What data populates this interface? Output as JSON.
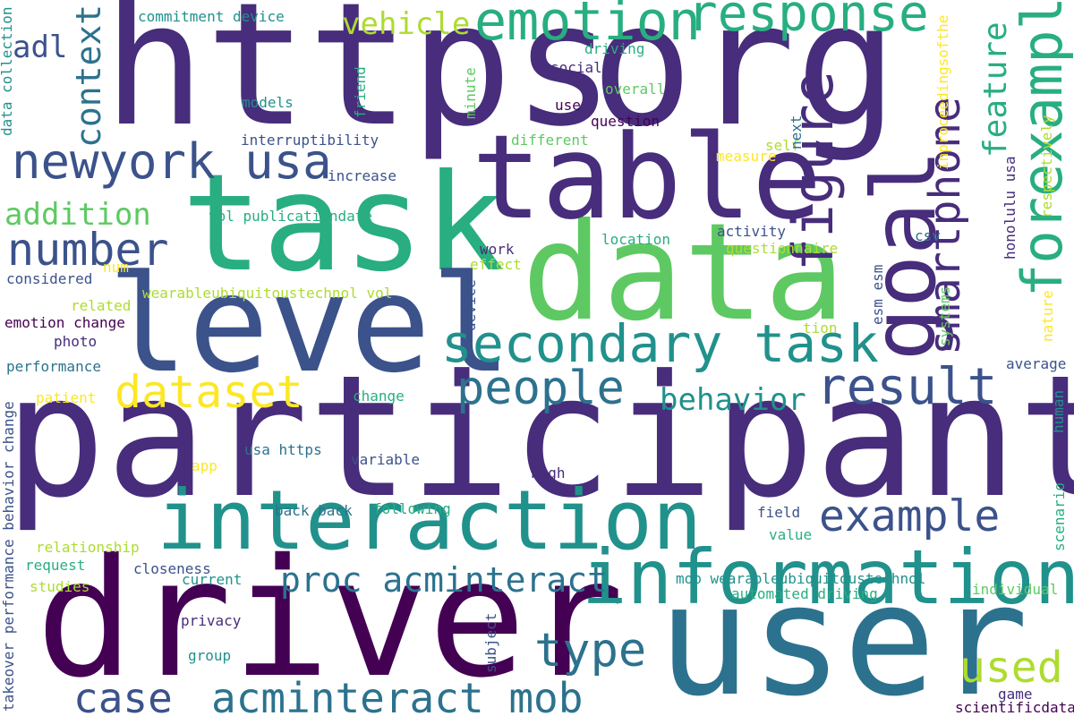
{
  "colors": {
    "c1": "#440154",
    "c2": "#472d7b",
    "c3": "#3b528b",
    "c4": "#2c728e",
    "c5": "#21918c",
    "c6": "#28ae80",
    "c7": "#5ec962",
    "c8": "#addc30",
    "c9": "#fde725"
  },
  "words": [
    {
      "text": "https",
      "color": "c2"
    },
    {
      "text": "org",
      "color": "c2"
    },
    {
      "text": "participant",
      "color": "c2"
    },
    {
      "text": "driver",
      "color": "c1"
    },
    {
      "text": "user",
      "color": "c4"
    },
    {
      "text": "task",
      "color": "c6"
    },
    {
      "text": "data",
      "color": "c7"
    },
    {
      "text": "table",
      "color": "c2"
    },
    {
      "text": "level",
      "color": "c3"
    },
    {
      "text": "goal",
      "color": "c2"
    },
    {
      "text": "interaction",
      "color": "c5"
    },
    {
      "text": "information",
      "color": "c5"
    },
    {
      "text": "emotion",
      "color": "c6"
    },
    {
      "text": "response",
      "color": "c6"
    },
    {
      "text": "newyork usa",
      "color": "c3"
    },
    {
      "text": "secondary task",
      "color": "c5"
    },
    {
      "text": "figure",
      "color": "c2"
    },
    {
      "text": "smartphone",
      "color": "c2"
    },
    {
      "text": "forexample",
      "color": "c6"
    },
    {
      "text": "feature",
      "color": "c6"
    },
    {
      "text": "dataset",
      "color": "c9"
    },
    {
      "text": "people",
      "color": "c4"
    },
    {
      "text": "result",
      "color": "c3"
    },
    {
      "text": "number",
      "color": "c3"
    },
    {
      "text": "example",
      "color": "c3"
    },
    {
      "text": "addition",
      "color": "c7"
    },
    {
      "text": "context",
      "color": "c4"
    },
    {
      "text": "adl",
      "color": "c3"
    },
    {
      "text": "vehicle",
      "color": "c8"
    },
    {
      "text": "behavior",
      "color": "c5"
    },
    {
      "text": "proc acminteract",
      "color": "c4"
    },
    {
      "text": "type",
      "color": "c4"
    },
    {
      "text": "used",
      "color": "c8"
    },
    {
      "text": "case",
      "color": "c3"
    },
    {
      "text": "acminteract mob",
      "color": "c4"
    },
    {
      "text": "commitment device",
      "color": "c5"
    },
    {
      "text": "driving",
      "color": "c6"
    },
    {
      "text": "social",
      "color": "c2"
    },
    {
      "text": "overall",
      "color": "c7"
    },
    {
      "text": "use",
      "color": "c1"
    },
    {
      "text": "question",
      "color": "c1"
    },
    {
      "text": "different",
      "color": "c7"
    },
    {
      "text": "models",
      "color": "c5"
    },
    {
      "text": "interruptibility",
      "color": "c3"
    },
    {
      "text": "increase",
      "color": "c3"
    },
    {
      "text": "vol publicationdate",
      "color": "c6"
    },
    {
      "text": "friend",
      "color": "c6"
    },
    {
      "text": "minute",
      "color": "c7"
    },
    {
      "text": "self",
      "color": "c8"
    },
    {
      "text": "measure",
      "color": "c9"
    },
    {
      "text": "next",
      "color": "c4"
    },
    {
      "text": "inproceedingsofthe",
      "color": "c9"
    },
    {
      "text": "respectively",
      "color": "c8"
    },
    {
      "text": "data collection",
      "color": "c5"
    },
    {
      "text": "csv",
      "color": "c4"
    },
    {
      "text": "activity",
      "color": "c3"
    },
    {
      "text": "location",
      "color": "c6"
    },
    {
      "text": "questionnaire",
      "color": "c8"
    },
    {
      "text": "work",
      "color": "c2"
    },
    {
      "text": "effect",
      "color": "c8"
    },
    {
      "text": "num",
      "color": "c9"
    },
    {
      "text": "considered",
      "color": "c3"
    },
    {
      "text": "wearableubiquitoustechnol vol",
      "color": "c8"
    },
    {
      "text": "related",
      "color": "c8"
    },
    {
      "text": "emotion change",
      "color": "c1"
    },
    {
      "text": "photo",
      "color": "c2"
    },
    {
      "text": "performance",
      "color": "c4"
    },
    {
      "text": "device",
      "color": "c3"
    },
    {
      "text": "honolulu usa",
      "color": "c2"
    },
    {
      "text": "esm esm",
      "color": "c3"
    },
    {
      "text": "tion",
      "color": "c8"
    },
    {
      "text": "systems",
      "color": "c7"
    },
    {
      "text": "nature",
      "color": "c9"
    },
    {
      "text": "average",
      "color": "c3"
    },
    {
      "text": "human",
      "color": "c5"
    },
    {
      "text": "patient",
      "color": "c9"
    },
    {
      "text": "change",
      "color": "c6"
    },
    {
      "text": "app",
      "color": "c9"
    },
    {
      "text": "usa https",
      "color": "c4"
    },
    {
      "text": "variable",
      "color": "c3"
    },
    {
      "text": "high",
      "color": "c2"
    },
    {
      "text": "back back",
      "color": "c4"
    },
    {
      "text": "following",
      "color": "c6"
    },
    {
      "text": "field",
      "color": "c3"
    },
    {
      "text": "value",
      "color": "c6"
    },
    {
      "text": "relationship",
      "color": "c8"
    },
    {
      "text": "request",
      "color": "c6"
    },
    {
      "text": "closeness",
      "color": "c3"
    },
    {
      "text": "mob wearableubiquitoustechnol",
      "color": "c5"
    },
    {
      "text": "studies",
      "color": "c8"
    },
    {
      "text": "current",
      "color": "c5"
    },
    {
      "text": "automated driving",
      "color": "c6"
    },
    {
      "text": "individual",
      "color": "c7"
    },
    {
      "text": "privacy",
      "color": "c2"
    },
    {
      "text": "group",
      "color": "c5"
    },
    {
      "text": "subject",
      "color": "c3"
    },
    {
      "text": "game",
      "color": "c2"
    },
    {
      "text": "scientificdata",
      "color": "c1"
    },
    {
      "text": "scenario",
      "color": "c6"
    },
    {
      "text": "takeover performance behavior change",
      "color": "c3"
    }
  ]
}
